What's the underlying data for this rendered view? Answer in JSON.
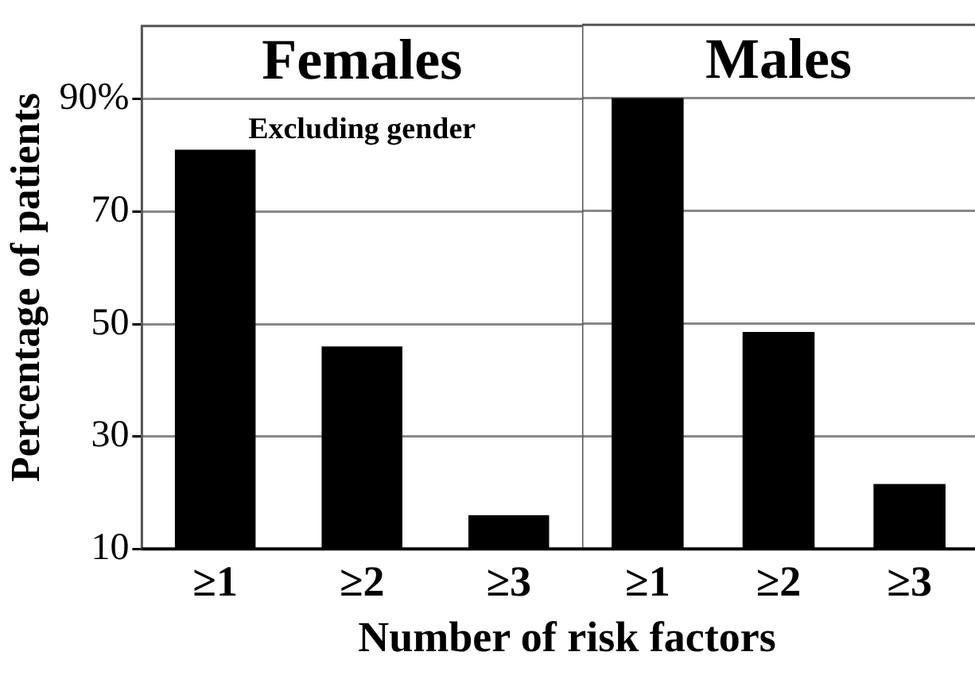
{
  "chart_data": [
    {
      "type": "bar",
      "title": "Females",
      "annotations": [
        "Excluding gender"
      ],
      "ylabel": "Percentage of patients",
      "xlabel": "Number of risk factors",
      "categories": [
        "≥1",
        "≥2",
        "≥3"
      ],
      "values": [
        81,
        46,
        16
      ],
      "color": "#000000",
      "ylim": [
        10,
        103
      ],
      "yticks": [
        10,
        30,
        50,
        70,
        {
          "value": 90,
          "label": "90%"
        }
      ],
      "grid": "y"
    },
    {
      "type": "bar",
      "title": "Males",
      "categories": [
        "≥1",
        "≥2",
        "≥3"
      ],
      "values": [
        90,
        48.5,
        21.5
      ],
      "color": "#000000",
      "ylim": [
        10,
        103
      ],
      "yticks": [
        10,
        30,
        50,
        70,
        90
      ],
      "grid": "y",
      "tick_labels": "x"
    }
  ]
}
